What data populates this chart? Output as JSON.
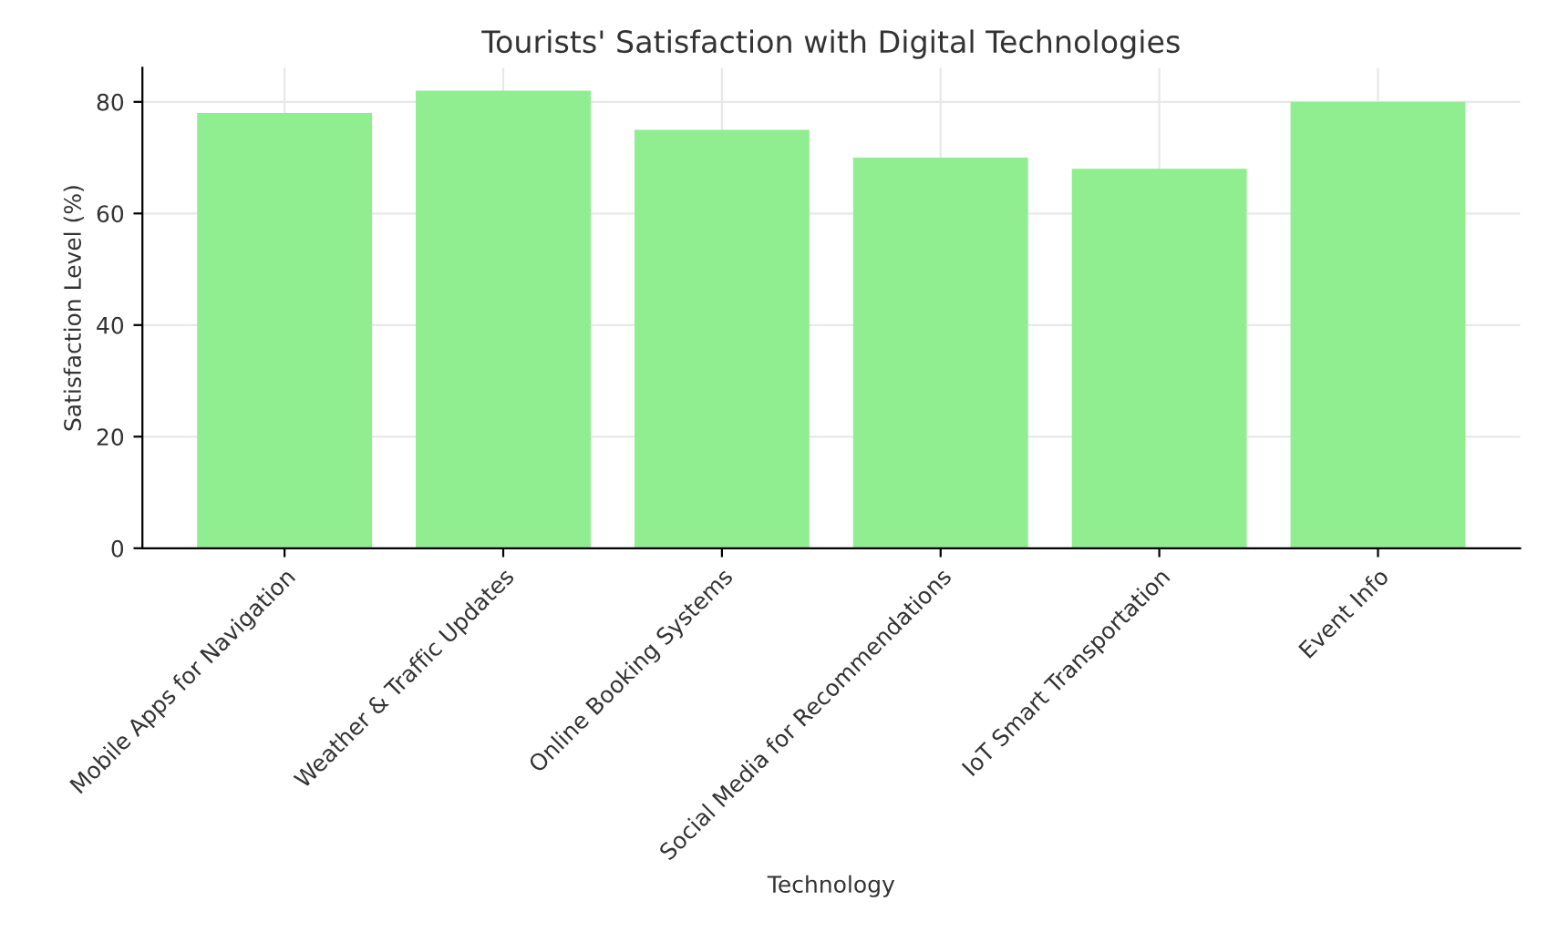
{
  "chart_data": {
    "type": "bar",
    "title": "Tourists' Satisfaction with Digital Technologies",
    "xlabel": "Technology",
    "ylabel": "Satisfaction Level (%)",
    "categories": [
      "Mobile Apps for Navigation",
      "Weather & Traffic Updates",
      "Online Booking Systems",
      "Social Media for Recommendations",
      "IoT Smart Transportation",
      "Event Info"
    ],
    "values": [
      78,
      82,
      75,
      70,
      68,
      80
    ],
    "color": "#90ee90",
    "ylim": [
      0,
      86.1
    ],
    "yticks": [
      0,
      20,
      40,
      60,
      80
    ],
    "grid": true
  }
}
